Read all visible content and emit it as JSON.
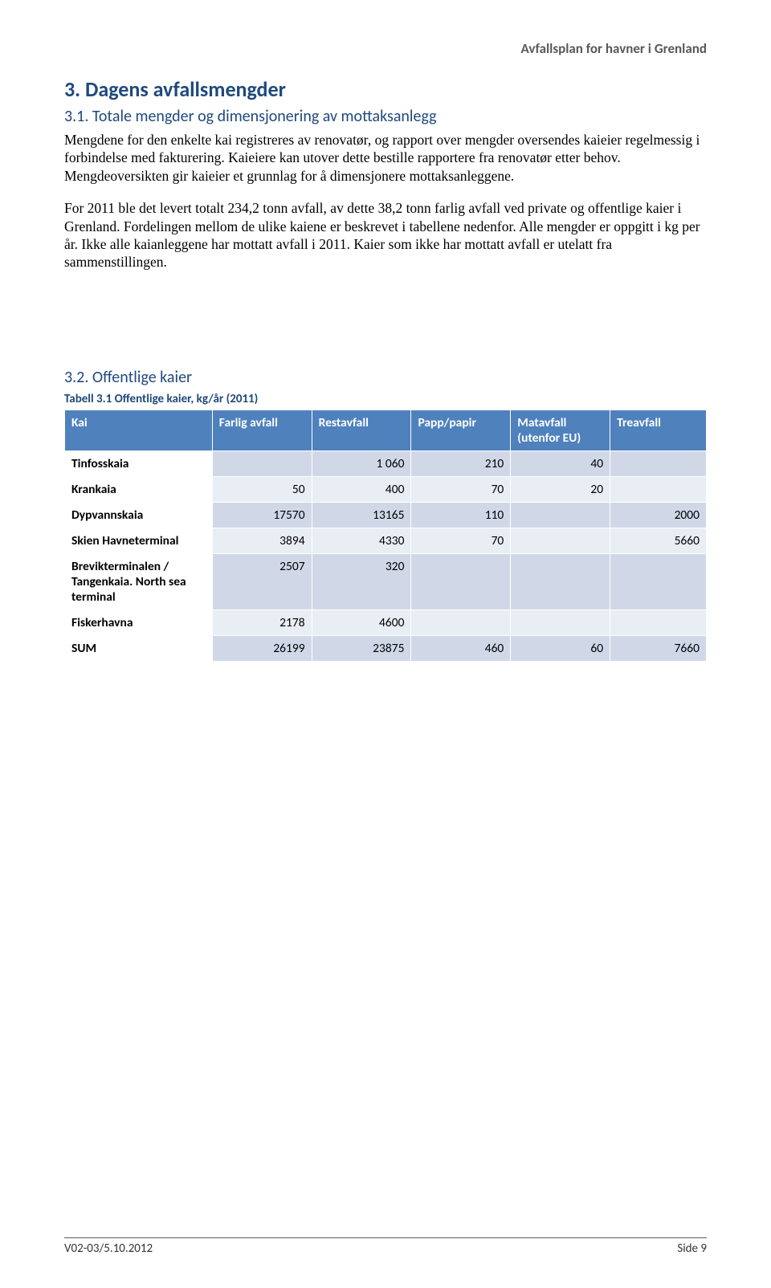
{
  "header": {
    "doc_title": "Avfallsplan for havner i Grenland"
  },
  "section3": {
    "heading": "3. Dagens avfallsmengder",
    "sub1": {
      "heading": "3.1. Totale mengder og dimensjonering av mottaksanlegg",
      "p1": "Mengdene for den enkelte kai registreres av renovatør, og rapport over mengder oversendes kaieier regelmessig i forbindelse med fakturering. Kaieiere kan utover dette bestille rapportere fra renovatør etter behov. Mengdeoversikten gir kaieier et grunnlag for å dimensjonere mottaksanleggene.",
      "p2": "For 2011 ble det levert totalt 234,2 tonn avfall, av dette 38,2 tonn farlig avfall ved private og offentlige kaier i Grenland. Fordelingen mellom de ulike kaiene er beskrevet i tabellene nedenfor. Alle mengder er oppgitt i kg per år. Ikke alle kaianleggene har mottatt avfall i 2011. Kaier som ikke har mottatt avfall er utelatt fra sammenstillingen."
    },
    "sub2": {
      "heading": "3.2.   Offentlige kaier",
      "table_caption": "Tabell 3.1 Offentlige kaier, kg/år (2011)",
      "columns": [
        "Kai",
        "Farlig avfall",
        "Restavfall",
        "Papp/papir",
        "Matavfall (utenfor EU)",
        "Treavfall"
      ],
      "rows": [
        {
          "label": "Tinfosskaia",
          "cells": [
            "",
            "1 060",
            "210",
            "40",
            ""
          ]
        },
        {
          "label": "Krankaia",
          "cells": [
            "50",
            "400",
            "70",
            "20",
            ""
          ]
        },
        {
          "label": "Dypvannskaia",
          "cells": [
            "17570",
            "13165",
            "110",
            "",
            "2000"
          ]
        },
        {
          "label": "Skien Havneterminal",
          "cells": [
            "3894",
            "4330",
            "70",
            "",
            "5660"
          ]
        },
        {
          "label": "Brevikterminalen / Tangenkaia. North sea terminal",
          "cells": [
            "2507",
            "320",
            "",
            "",
            ""
          ]
        },
        {
          "label": "Fiskerhavna",
          "cells": [
            "2178",
            "4600",
            "",
            "",
            ""
          ]
        },
        {
          "label": "SUM",
          "cells": [
            "26199",
            "23875",
            "460",
            "60",
            "7660"
          ]
        }
      ],
      "col_widths": [
        "23%",
        "15.5%",
        "15.5%",
        "15.5%",
        "15.5%",
        "15%"
      ],
      "header_bg": "#4f81bd",
      "header_fg": "#ffffff",
      "row_bg_odd": "#d0d8e8",
      "row_bg_even": "#e9edf4",
      "border_color": "#ffffff"
    }
  },
  "footer": {
    "left": "V02-03/5.10.2012",
    "right": "Side 9"
  }
}
